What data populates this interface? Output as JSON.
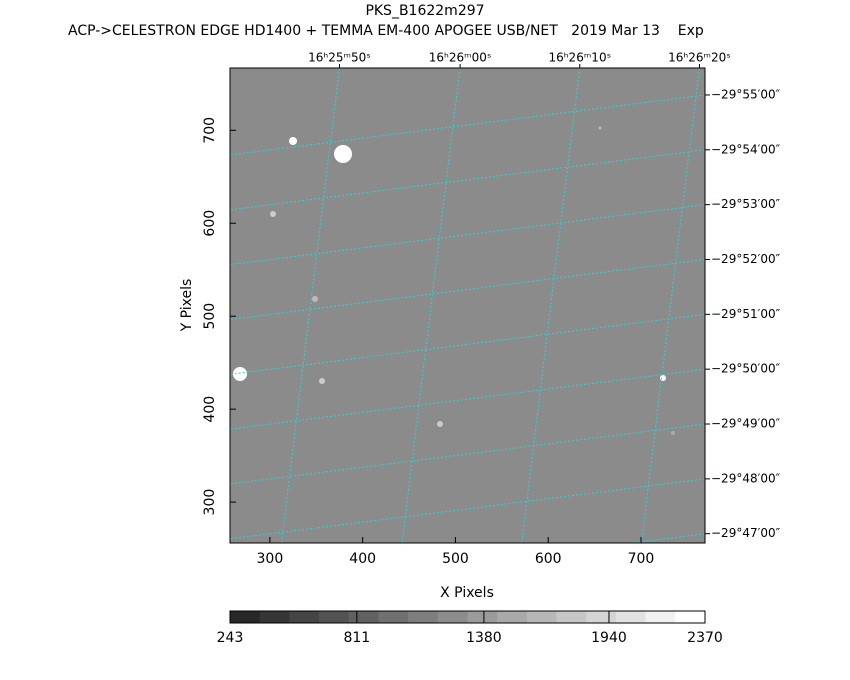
{
  "chart_data": {
    "type": "image",
    "title": "PKS_B1622m297",
    "subtitle": "ACP->CELESTRON EDGE HD1400 + TEMMA EM-400 APOGEE USB/NET   2019 Mar 13    Exp",
    "xlabel": "X Pixels",
    "ylabel": "Y Pixels",
    "xlim": [
      257,
      769
    ],
    "ylim": [
      256,
      767
    ],
    "xticks": [
      300,
      400,
      500,
      600,
      700
    ],
    "yticks": [
      300,
      400,
      500,
      600,
      700
    ],
    "ra_ticks": [
      {
        "value": 375,
        "label": "16ʰ25ᵐ50ˢ"
      },
      {
        "value": 505,
        "label": "16ʰ26ᵐ00ˢ"
      },
      {
        "value": 634,
        "label": "16ʰ26ᵐ10ˢ"
      },
      {
        "value": 763,
        "label": "16ʰ26ᵐ20ˢ"
      }
    ],
    "dec_ticks": [
      {
        "value": 738,
        "label": "−29°55′00″"
      },
      {
        "value": 679,
        "label": "−29°54′00″"
      },
      {
        "value": 620,
        "label": "−29°53′00″"
      },
      {
        "value": 561,
        "label": "−29°52′00″"
      },
      {
        "value": 502,
        "label": "−29°51′00″"
      },
      {
        "value": 443,
        "label": "−29°50′00″"
      },
      {
        "value": 384,
        "label": "−29°49′00″"
      },
      {
        "value": 325,
        "label": "−29°48′00″"
      },
      {
        "value": 266,
        "label": "−29°47′00″"
      }
    ],
    "grid": true,
    "grid_color": "#2ad4d4",
    "colorbar_lim": [
      243,
      2370
    ],
    "colorbar_ticks": [
      243,
      811,
      1380,
      1940,
      2370
    ]
  }
}
